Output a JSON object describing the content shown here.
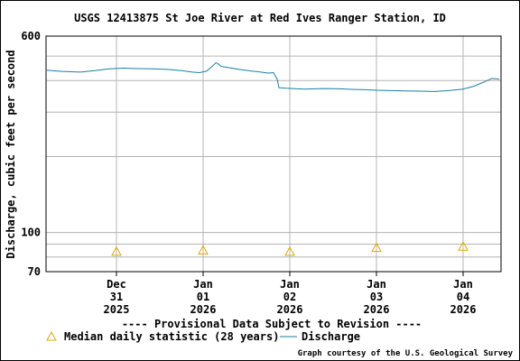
{
  "chart_data": {
    "type": "line",
    "title": "USGS 12413875 St Joe River at Red Ives Ranger Station, ID",
    "ylabel": "Discharge, cubic feet per second",
    "xlabel": "",
    "y_scale": "log",
    "ylim": [
      70,
      600
    ],
    "y_ticks": [
      "600",
      "100",
      "70"
    ],
    "xlim": [
      "2025-12-30T04:30",
      "2026-01-04T10:30"
    ],
    "x_ticks": [
      {
        "x": "2025-12-31T00:00",
        "month": "Dec",
        "day": "31",
        "year": "2025"
      },
      {
        "x": "2026-01-01T00:00",
        "month": "Jan",
        "day": "01",
        "year": "2026"
      },
      {
        "x": "2026-01-02T00:00",
        "month": "Jan",
        "day": "02",
        "year": "2026"
      },
      {
        "x": "2026-01-03T00:00",
        "month": "Jan",
        "day": "03",
        "year": "2026"
      },
      {
        "x": "2026-01-04T00:00",
        "month": "Jan",
        "day": "04",
        "year": "2026"
      }
    ],
    "grid": true,
    "legend_position": "bottom",
    "provisional_note": "---- Provisional Data Subject to Revision ----",
    "credit": "Graph courtesy of the U.S. Geological Survey",
    "colors": {
      "discharge": "#1a7fa6",
      "median": "#e0a800",
      "note": "#cc0000",
      "grid": "#b4b4b4"
    },
    "series": [
      {
        "name": "Discharge",
        "style": "line",
        "points": [
          [
            "2025-12-30T04:30",
            440
          ],
          [
            "2025-12-30T09:00",
            435
          ],
          [
            "2025-12-30T14:00",
            432
          ],
          [
            "2025-12-30T18:00",
            438
          ],
          [
            "2025-12-30T22:00",
            445
          ],
          [
            "2025-12-31T02:00",
            448
          ],
          [
            "2025-12-31T06:00",
            446
          ],
          [
            "2025-12-31T10:00",
            445
          ],
          [
            "2025-12-31T14:00",
            443
          ],
          [
            "2025-12-31T18:00",
            438
          ],
          [
            "2025-12-31T21:00",
            432
          ],
          [
            "2025-12-31T23:00",
            430
          ],
          [
            "2026-01-01T01:00",
            436
          ],
          [
            "2026-01-01T02:30",
            455
          ],
          [
            "2026-01-01T03:30",
            470
          ],
          [
            "2026-01-01T04:00",
            468
          ],
          [
            "2026-01-01T05:00",
            455
          ],
          [
            "2026-01-01T07:00",
            450
          ],
          [
            "2026-01-01T10:00",
            443
          ],
          [
            "2026-01-01T13:00",
            437
          ],
          [
            "2026-01-01T16:00",
            432
          ],
          [
            "2026-01-01T18:00",
            428
          ],
          [
            "2026-01-01T19:30",
            430
          ],
          [
            "2026-01-01T20:30",
            405
          ],
          [
            "2026-01-01T21:00",
            375
          ],
          [
            "2026-01-01T23:00",
            373
          ],
          [
            "2026-01-02T04:00",
            370
          ],
          [
            "2026-01-02T09:00",
            372
          ],
          [
            "2026-01-02T14:00",
            371
          ],
          [
            "2026-01-02T18:00",
            369
          ],
          [
            "2026-01-02T21:00",
            368
          ],
          [
            "2026-01-03T00:00",
            366
          ],
          [
            "2026-01-03T04:00",
            365
          ],
          [
            "2026-01-03T08:00",
            364
          ],
          [
            "2026-01-03T12:00",
            363
          ],
          [
            "2026-01-03T16:00",
            362
          ],
          [
            "2026-01-03T20:00",
            365
          ],
          [
            "2026-01-04T00:00",
            370
          ],
          [
            "2026-01-04T03:00",
            380
          ],
          [
            "2026-01-04T05:30",
            393
          ],
          [
            "2026-01-04T07:00",
            402
          ],
          [
            "2026-01-04T08:00",
            408
          ],
          [
            "2026-01-04T10:00",
            405
          ]
        ]
      },
      {
        "name": "Median daily statistic (28 years)",
        "style": "triangle",
        "points": [
          [
            "2025-12-31T00:00",
            84
          ],
          [
            "2026-01-01T00:00",
            85
          ],
          [
            "2026-01-02T00:00",
            84
          ],
          [
            "2026-01-03T00:00",
            87
          ],
          [
            "2026-01-04T00:00",
            88
          ]
        ]
      }
    ]
  }
}
